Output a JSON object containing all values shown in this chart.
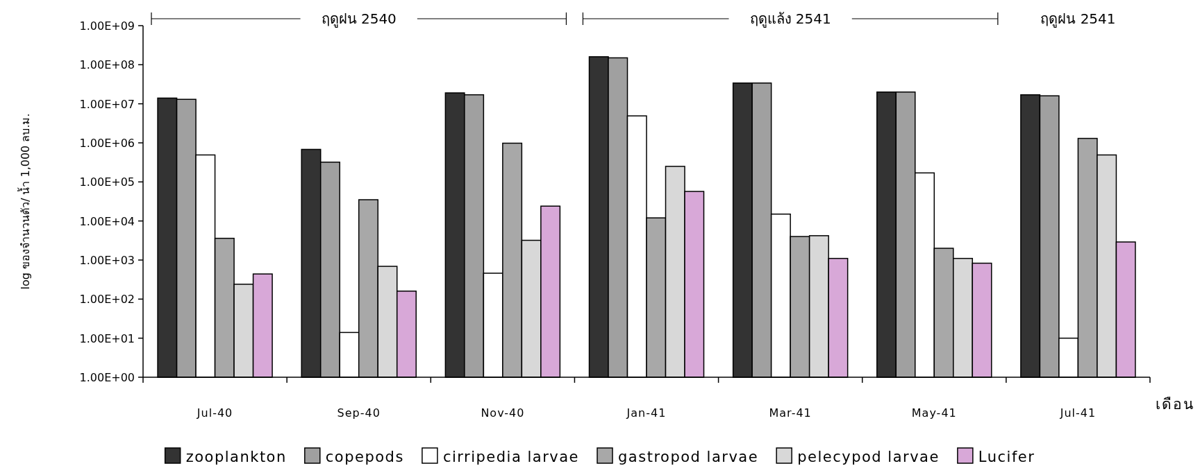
{
  "chart_data": {
    "type": "bar",
    "log": true,
    "ylabel": "log ของจำนวนตัว/ น้ำ 1,000 ลบ.ม.",
    "xlabel": "เดือน",
    "annotations": [
      "ฤดูฝน 2540",
      "ฤดูแล้ง 2541",
      "ฤดูฝน 2541"
    ],
    "categories": [
      "Jul-40",
      "Sep-40",
      "Nov-40",
      "Jan-41",
      "Mar-41",
      "May-41",
      "Jul-41"
    ],
    "ylim": [
      1,
      1000000000
    ],
    "yticks": [
      {
        "value": 1,
        "label": "1.00E+00"
      },
      {
        "value": 10,
        "label": "1.00E+01"
      },
      {
        "value": 100,
        "label": "1.00E+02"
      },
      {
        "value": 1000,
        "label": "1.00E+03"
      },
      {
        "value": 10000,
        "label": "1.00E+04"
      },
      {
        "value": 100000,
        "label": "1.00E+05"
      },
      {
        "value": 1000000,
        "label": "1.00E+06"
      },
      {
        "value": 10000000,
        "label": "1.00E+07"
      },
      {
        "value": 100000000,
        "label": "1.00E+08"
      },
      {
        "value": 1000000000,
        "label": "1.00E+09"
      }
    ],
    "legend": "bottom",
    "grid": false,
    "series": [
      {
        "name": "zooplankton",
        "color": "#333333",
        "values": [
          14000000,
          680000,
          19000000,
          160000000,
          34000000,
          20000000,
          17000000
        ]
      },
      {
        "name": "copepods",
        "color": "#a0a0a0",
        "values": [
          13000000,
          320000,
          17000000,
          150000000,
          34000000,
          20000000,
          16000000
        ]
      },
      {
        "name": "cirripedia larvae",
        "color": "#ffffff",
        "values": [
          490000,
          14,
          460,
          4900000,
          15000,
          170000,
          10
        ]
      },
      {
        "name": "gastropod larvae",
        "color": "#a8a8a8",
        "values": [
          3600,
          35000,
          980000,
          12000,
          4000,
          2000,
          1300000
        ]
      },
      {
        "name": "pelecypod larvae",
        "color": "#d8d8d8",
        "values": [
          240,
          690,
          3200,
          250000,
          4200,
          1100,
          490000
        ]
      },
      {
        "name": "Lucifer",
        "color": "#d8a8d8",
        "values": [
          440,
          160,
          24000,
          57000,
          1100,
          830,
          2900
        ]
      }
    ]
  }
}
